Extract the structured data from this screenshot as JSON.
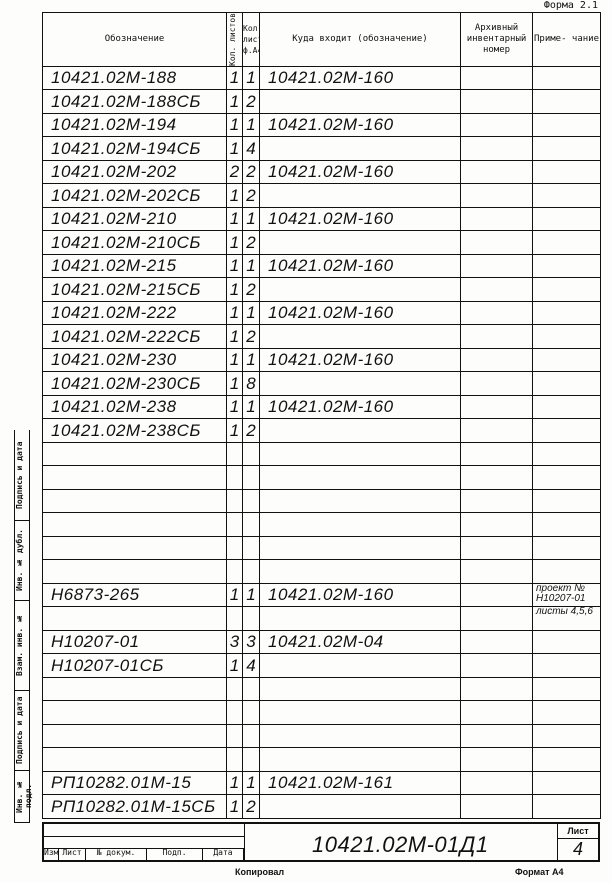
{
  "form_label": "Форма 2.1",
  "headers": {
    "designation": "Обозначение",
    "sheets_count": "Кол. листов",
    "a4_sheets": "Кол. лист ф.А4",
    "used_in": "Куда входит (обозначение)",
    "archive": "Архивный инвентарный номер",
    "note": "Приме- чание"
  },
  "rows": [
    {
      "d": "10421.02М-188",
      "n": "1",
      "a4": "1",
      "u": "10421.02М-160"
    },
    {
      "d": "10421.02М-188СБ",
      "n": "1",
      "a4": "2",
      "u": ""
    },
    {
      "d": "10421.02М-194",
      "n": "1",
      "a4": "1",
      "u": "10421.02М-160"
    },
    {
      "d": "10421.02М-194СБ",
      "n": "1",
      "a4": "4",
      "u": ""
    },
    {
      "d": "10421.02М-202",
      "n": "2",
      "a4": "2",
      "u": "10421.02М-160"
    },
    {
      "d": "10421.02М-202СБ",
      "n": "1",
      "a4": "2",
      "u": ""
    },
    {
      "d": "10421.02М-210",
      "n": "1",
      "a4": "1",
      "u": "10421.02М-160"
    },
    {
      "d": "10421.02М-210СБ",
      "n": "1",
      "a4": "2",
      "u": ""
    },
    {
      "d": "10421.02М-215",
      "n": "1",
      "a4": "1",
      "u": "10421.02М-160"
    },
    {
      "d": "10421.02М-215СБ",
      "n": "1",
      "a4": "2",
      "u": ""
    },
    {
      "d": "10421.02М-222",
      "n": "1",
      "a4": "1",
      "u": "10421.02М-160"
    },
    {
      "d": "10421.02М-222СБ",
      "n": "1",
      "a4": "2",
      "u": ""
    },
    {
      "d": "10421.02М-230",
      "n": "1",
      "a4": "1",
      "u": "10421.02М-160"
    },
    {
      "d": "10421.02М-230СБ",
      "n": "1",
      "a4": "8",
      "u": ""
    },
    {
      "d": "10421.02М-238",
      "n": "1",
      "a4": "1",
      "u": "10421.02М-160"
    },
    {
      "d": "10421.02М-238СБ",
      "n": "1",
      "a4": "2",
      "u": ""
    },
    {
      "d": "",
      "n": "",
      "a4": "",
      "u": ""
    },
    {
      "d": "",
      "n": "",
      "a4": "",
      "u": ""
    },
    {
      "d": "",
      "n": "",
      "a4": "",
      "u": ""
    },
    {
      "d": "",
      "n": "",
      "a4": "",
      "u": ""
    },
    {
      "d": "",
      "n": "",
      "a4": "",
      "u": ""
    },
    {
      "d": "",
      "n": "",
      "a4": "",
      "u": ""
    },
    {
      "d": "Н6873-265",
      "n": "1",
      "a4": "1",
      "u": "10421.02М-160",
      "note": "проект № Н10207-01"
    },
    {
      "d": "",
      "n": "",
      "a4": "",
      "u": "",
      "note": "листы 4,5,6"
    },
    {
      "d": "Н10207-01",
      "n": "3",
      "a4": "3",
      "u": "10421.02М-04"
    },
    {
      "d": "Н10207-01СБ",
      "n": "1",
      "a4": "4",
      "u": ""
    },
    {
      "d": "",
      "n": "",
      "a4": "",
      "u": ""
    },
    {
      "d": "",
      "n": "",
      "a4": "",
      "u": ""
    },
    {
      "d": "",
      "n": "",
      "a4": "",
      "u": ""
    },
    {
      "d": "",
      "n": "",
      "a4": "",
      "u": ""
    },
    {
      "d": "РП10282.01М-15",
      "n": "1",
      "a4": "1",
      "u": "10421.02М-161"
    },
    {
      "d": "РП10282.01М-15СБ",
      "n": "1",
      "a4": "2",
      "u": ""
    }
  ],
  "side_labels": [
    "Инв. № подл.",
    "Подпись и дата",
    "Взам. инв. №",
    "Инв. № дубл.",
    "Подпись и дата"
  ],
  "title_block": {
    "izm": "Изм",
    "list": "Лист",
    "doc": "№ докум.",
    "sign": "Подп.",
    "date": "Дата",
    "designation": "10421.02М-01Д1",
    "sheet_label": "Лист",
    "sheet_no": "4"
  },
  "footer": {
    "copied": "Копировал",
    "format": "Формат А4"
  }
}
